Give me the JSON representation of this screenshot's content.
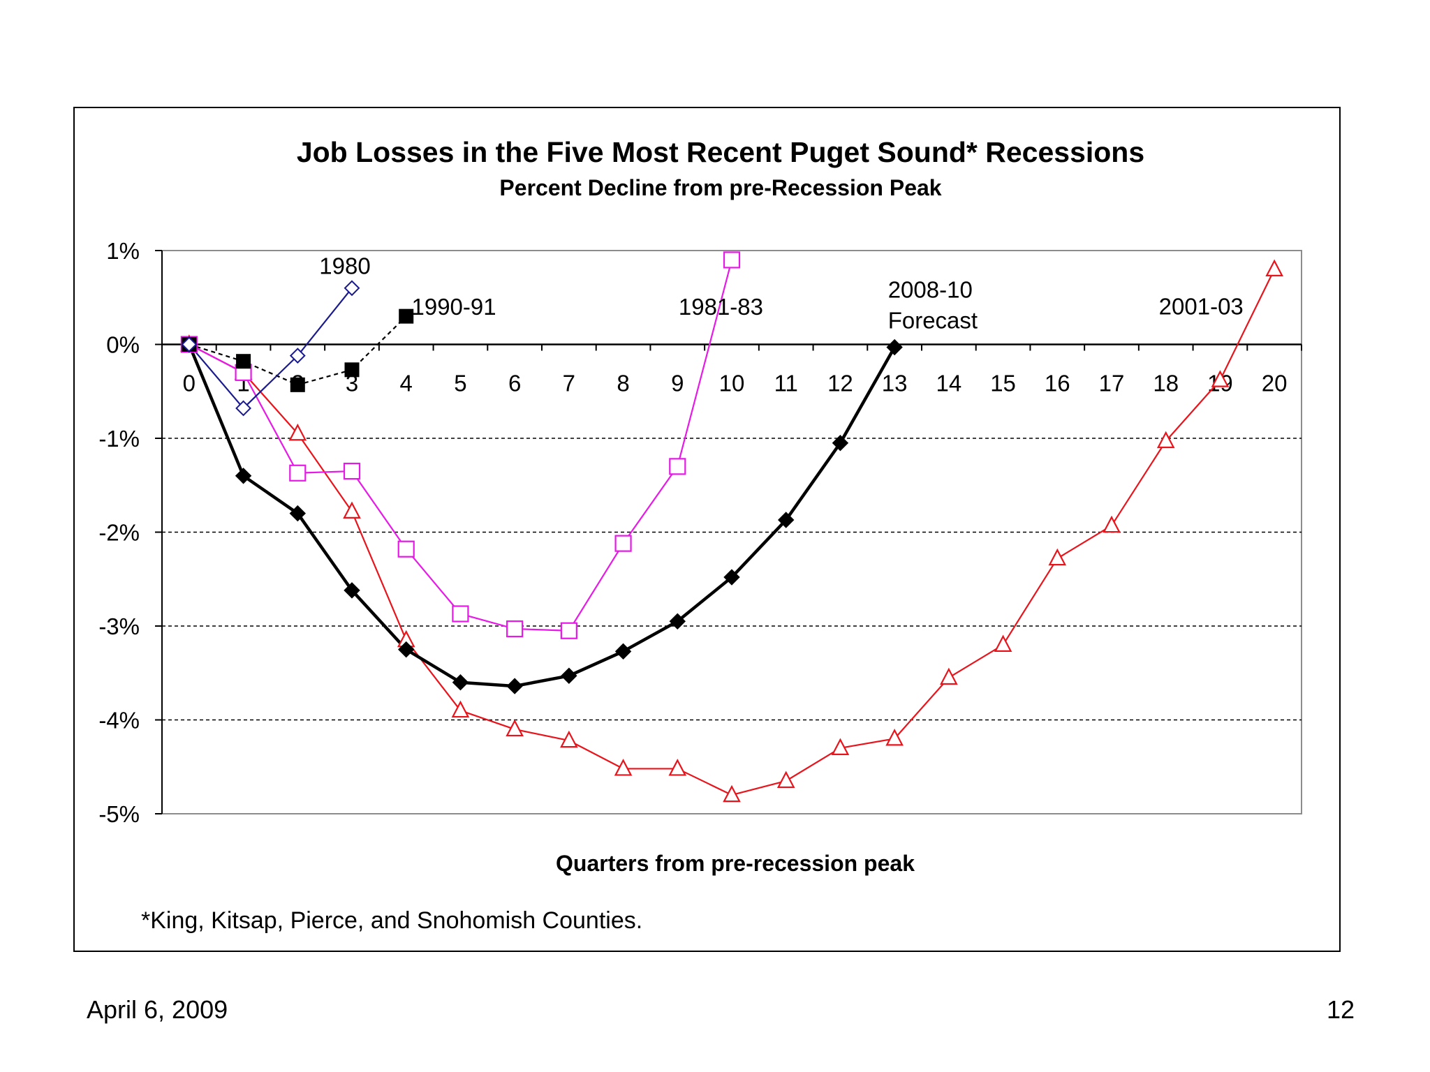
{
  "chart_data": {
    "type": "line",
    "title": "Job Losses in the Five Most Recent Puget Sound* Recessions",
    "subtitle": "Percent Decline from pre-Recession Peak",
    "xlabel": "Quarters from pre-recession peak",
    "ylabel": "",
    "ylim": [
      -5,
      1
    ],
    "xlim": [
      -0.5,
      20.5
    ],
    "y_ticks": [
      1,
      0,
      -1,
      -2,
      -3,
      -4,
      -5
    ],
    "y_tick_labels": [
      "1%",
      "0%",
      "-1%",
      "-2%",
      "-3%",
      "-4%",
      "-5%"
    ],
    "x_ticks": [
      0,
      1,
      2,
      3,
      4,
      5,
      6,
      7,
      8,
      9,
      10,
      11,
      12,
      13,
      14,
      15,
      16,
      17,
      18,
      19,
      20
    ],
    "x_tick_labels": [
      "0",
      "1",
      "2",
      "3",
      "4",
      "5",
      "6",
      "7",
      "8",
      "9",
      "10",
      "11",
      "12",
      "13",
      "14",
      "15",
      "16",
      "17",
      "18",
      "19",
      "20"
    ],
    "gridlines": "dashed horizontal at -1%, -2%, -3%, -4%",
    "footnote": "*King, Kitsap, Pierce, and Snohomish Counties.",
    "series": [
      {
        "name": "2001-03",
        "color": "#e8141c",
        "marker": "triangle-open",
        "x": [
          0,
          1,
          2,
          3,
          4,
          5,
          6,
          7,
          8,
          9,
          10,
          11,
          12,
          13,
          14,
          15,
          16,
          17,
          18,
          19,
          20
        ],
        "values": [
          0,
          -0.3,
          -0.95,
          -1.78,
          -3.15,
          -3.9,
          -4.1,
          -4.22,
          -4.52,
          -4.52,
          -4.8,
          -4.65,
          -4.3,
          -4.2,
          -3.55,
          -3.2,
          -2.28,
          -1.93,
          -1.03,
          -0.38,
          0.8
        ]
      },
      {
        "name": "1981-83",
        "color": "#e619e6",
        "marker": "square-open",
        "x": [
          0,
          1,
          2,
          3,
          4,
          5,
          6,
          7,
          8,
          9,
          10
        ],
        "values": [
          0,
          -0.3,
          -1.37,
          -1.35,
          -2.18,
          -2.87,
          -3.03,
          -3.05,
          -2.12,
          -1.3,
          0.9
        ]
      },
      {
        "name": "2008-10 Forecast",
        "color": "#000000",
        "marker": "diamond-filled",
        "x": [
          0,
          1,
          2,
          3,
          4,
          5,
          6,
          7,
          8,
          9,
          10,
          11,
          12,
          13
        ],
        "values": [
          0,
          -1.4,
          -1.8,
          -2.62,
          -3.25,
          -3.6,
          -3.64,
          -3.53,
          -3.27,
          -2.95,
          -2.48,
          -1.87,
          -1.05,
          -0.03
        ]
      },
      {
        "name": "1990-91",
        "color": "#000000",
        "marker": "square-filled",
        "dashed": true,
        "x": [
          0,
          1,
          2,
          3,
          4
        ],
        "values": [
          0,
          -0.18,
          -0.43,
          -0.27,
          0.3
        ]
      },
      {
        "name": "1980",
        "color": "#1a1a8c",
        "marker": "diamond-open",
        "x": [
          0,
          1,
          2,
          3
        ],
        "values": [
          0,
          -0.68,
          -0.12,
          0.6
        ]
      }
    ],
    "annotations": [
      {
        "text": "1980",
        "series": "1980"
      },
      {
        "text": "1990-91",
        "series": "1990-91"
      },
      {
        "text": "1981-83",
        "series": "1981-83"
      },
      {
        "text": "2008-10",
        "series": "2008-10 Forecast"
      },
      {
        "text": "Forecast",
        "series": "2008-10 Forecast"
      },
      {
        "text": "2001-03",
        "series": "2001-03"
      }
    ]
  },
  "footer": {
    "date": "April 6, 2009",
    "page_number": "12"
  }
}
